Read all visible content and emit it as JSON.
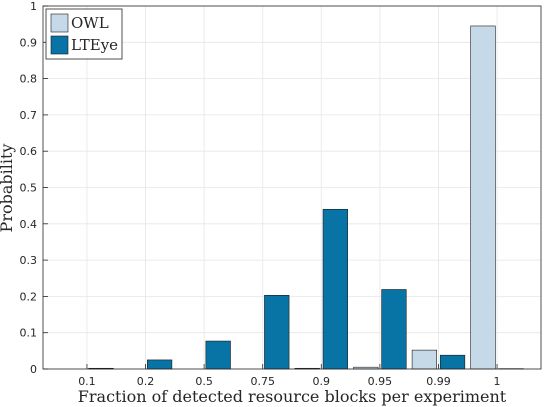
{
  "chart_data": {
    "type": "bar",
    "title": "",
    "xlabel": "Fraction of detected resource blocks per experiment",
    "ylabel": "Probability",
    "categories": [
      "0.1",
      "0.2",
      "0.5",
      "0.75",
      "0.9",
      "0.95",
      "0.99",
      "1"
    ],
    "ylim": [
      0,
      1
    ],
    "yticks": [
      "0",
      "0.1",
      "0.2",
      "0.3",
      "0.4",
      "0.5",
      "0.6",
      "0.7",
      "0.8",
      "0.9",
      "1"
    ],
    "grid": true,
    "legend_position": "top-left",
    "series": [
      {
        "name": "OWL",
        "color": "#c5d9e8",
        "values": [
          0,
          0,
          0,
          0,
          0.002,
          0.005,
          0.052,
          0.945
        ]
      },
      {
        "name": "LTEye",
        "color": "#0873a5",
        "values": [
          0.002,
          0.025,
          0.077,
          0.203,
          0.44,
          0.219,
          0.038,
          0.001
        ]
      }
    ]
  }
}
